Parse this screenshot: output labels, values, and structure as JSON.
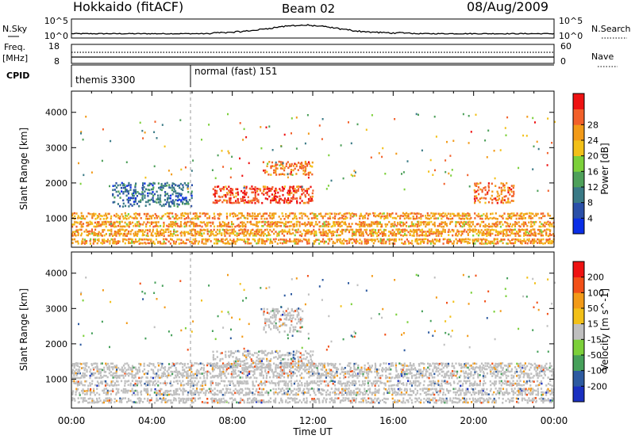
{
  "header": {
    "station": "Hokkaido (fitACF)",
    "beam": "Beam 02",
    "date": "08/Aug/2009"
  },
  "strip": {
    "nsky_label": "N.Sky",
    "nsearch_label": "N.Search",
    "nsky_ticks": [
      "10^5",
      "10^0"
    ],
    "nsearch_ticks": [
      "10^5",
      "10^0"
    ],
    "freq_label_1": "Freq.",
    "freq_label_2": "[MHz]",
    "freq_ticks": [
      "18",
      "8"
    ],
    "nave_label": "Nave",
    "nave_ticks": [
      "60",
      "0"
    ],
    "cpid_label": "CPID",
    "cpid_entries": [
      "themis 3300",
      "normal (fast) 151"
    ]
  },
  "axes": {
    "ylabel": "Slant Range [km]",
    "xlabel": "Time UT",
    "yticks": [
      "1000",
      "2000",
      "3000",
      "4000"
    ],
    "xticks": [
      "00:00",
      "04:00",
      "08:00",
      "12:00",
      "16:00",
      "20:00",
      "00:00"
    ]
  },
  "power_scale": {
    "label": "Power [dB]",
    "ticks": [
      "4",
      "8",
      "12",
      "16",
      "20",
      "24",
      "28"
    ],
    "colors": [
      "#0a2ee6",
      "#2a4fa8",
      "#3a7a86",
      "#4ea05a",
      "#7cd03a",
      "#f2c018",
      "#f29a18",
      "#f2602a",
      "#ee1212"
    ]
  },
  "velocity_scale": {
    "label": "Velocity [m s^-1]",
    "ticks": [
      "200",
      "100",
      "50",
      "15",
      "-15",
      "-50",
      "-100",
      "-200"
    ],
    "colors": [
      "#1a30c0",
      "#2d5aa0",
      "#46a05a",
      "#7cd03a",
      "#bfbfbf",
      "#f2c018",
      "#f29a18",
      "#f25018",
      "#ee1212"
    ]
  },
  "chart_data": [
    {
      "type": "heatmap",
      "title": "Beam 02",
      "xlabel": "Time UT",
      "ylabel": "Slant Range [km]",
      "xlim": [
        "00:00",
        "24:00"
      ],
      "ylim": [
        180,
        4600
      ],
      "colorbar": "Power [dB]",
      "colorbar_range": [
        0,
        30
      ],
      "regions": [
        {
          "t0": 0,
          "t1": 24,
          "r0": 250,
          "r1": 1150,
          "value": 24
        },
        {
          "t0": 7,
          "t1": 12,
          "r0": 1400,
          "r1": 1900,
          "value": 28
        },
        {
          "t0": 9.5,
          "t1": 12,
          "r0": 2200,
          "r1": 2600,
          "value": 26
        },
        {
          "t0": 2,
          "t1": 6,
          "r0": 1300,
          "r1": 2000,
          "value": 10
        },
        {
          "t0": 20,
          "t1": 22,
          "r0": 1400,
          "r1": 2000,
          "value": 26
        }
      ]
    },
    {
      "type": "heatmap",
      "title": "Beam 02",
      "xlabel": "Time UT",
      "ylabel": "Slant Range [km]",
      "xlim": [
        "00:00",
        "24:00"
      ],
      "ylim": [
        180,
        4600
      ],
      "colorbar": "Velocity [m s^-1]",
      "colorbar_range": [
        -250,
        250
      ],
      "regions": [
        {
          "t0": 0,
          "t1": 24,
          "r0": 300,
          "r1": 1450,
          "value": 0
        },
        {
          "t0": 7,
          "t1": 12,
          "r0": 1300,
          "r1": 1800,
          "value": 0
        },
        {
          "t0": 9.5,
          "t1": 11.5,
          "r0": 2300,
          "r1": 3000,
          "value": -40
        }
      ]
    }
  ]
}
